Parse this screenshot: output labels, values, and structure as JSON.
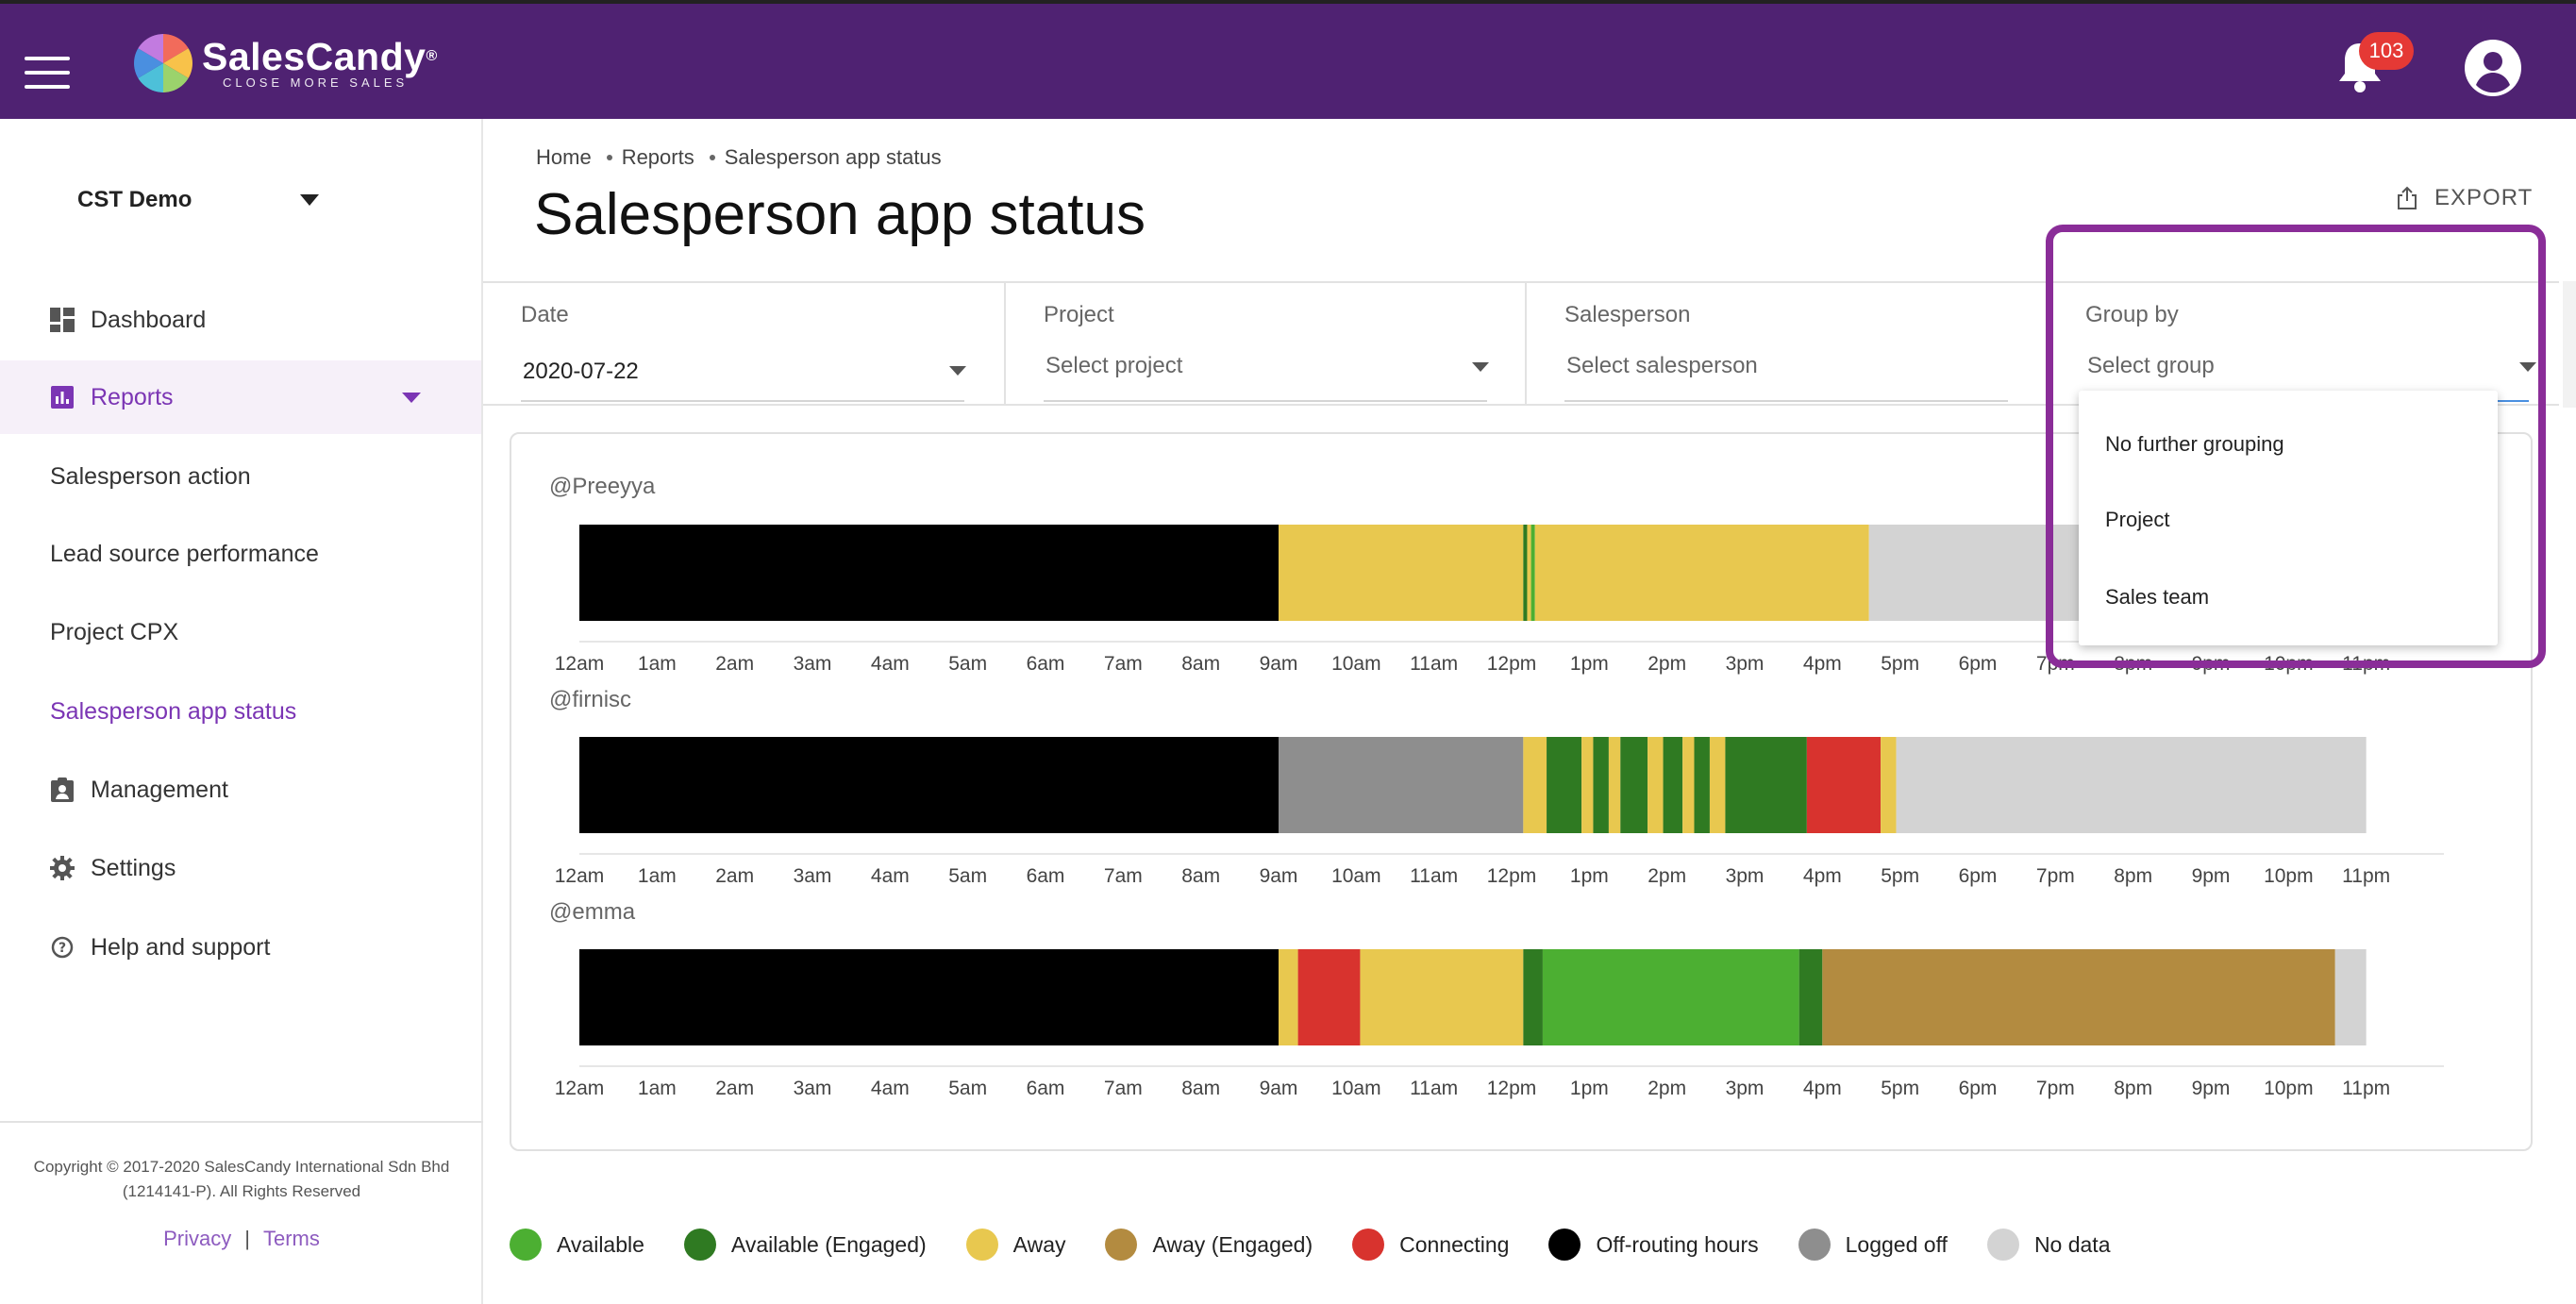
{
  "header": {
    "brand": "SalesCandy",
    "brand_mark": "®",
    "tagline": "CLOSE MORE SALES",
    "notification_count": "103",
    "colors": {
      "topbar": "#4f2272",
      "accent": "#7b35b4",
      "badge": "#e53935"
    }
  },
  "sidebar": {
    "org": "CST Demo",
    "items": [
      {
        "label": "Dashboard",
        "icon": "dashboard-icon"
      },
      {
        "label": "Reports",
        "icon": "bar-chart-icon"
      },
      {
        "label": "Salesperson action"
      },
      {
        "label": "Lead source performance"
      },
      {
        "label": "Project CPX"
      },
      {
        "label": "Salesperson app status"
      },
      {
        "label": "Management",
        "icon": "clipboard-icon"
      },
      {
        "label": "Settings",
        "icon": "gear-icon"
      },
      {
        "label": "Help and support",
        "icon": "help-icon"
      }
    ],
    "copyright_line1": "Copyright © 2017-2020 SalesCandy International Sdn Bhd",
    "copyright_line2": "(1214141-P). All Rights Reserved",
    "privacy": "Privacy",
    "terms": "Terms",
    "separator": "|"
  },
  "main": {
    "breadcrumb": [
      "Home",
      "Reports",
      "Salesperson app status"
    ],
    "title": "Salesperson app status",
    "export_label": "EXPORT",
    "filters": [
      {
        "label": "Date",
        "value": "2020-07-22"
      },
      {
        "label": "Project",
        "placeholder": "Select project"
      },
      {
        "label": "Salesperson",
        "placeholder": "Select salesperson"
      },
      {
        "label": "Group by",
        "placeholder": "Select group"
      }
    ],
    "group_options": [
      "No further grouping",
      "Project",
      "Sales team"
    ]
  },
  "chart_data": {
    "type": "timeline",
    "x_ticks": [
      "12am",
      "1am",
      "2am",
      "3am",
      "4am",
      "5am",
      "6am",
      "7am",
      "8am",
      "9am",
      "10am",
      "11am",
      "12pm",
      "1pm",
      "2pm",
      "3pm",
      "4pm",
      "5pm",
      "6pm",
      "7pm",
      "8pm",
      "9pm",
      "10pm",
      "11pm"
    ],
    "x_range_hours": [
      0,
      24
    ],
    "statuses": {
      "available": {
        "label": "Available",
        "color": "#4caf32"
      },
      "available_engaged": {
        "label": "Available (Engaged)",
        "color": "#2f7a22"
      },
      "away": {
        "label": "Away",
        "color": "#e8c84f"
      },
      "away_engaged": {
        "label": "Away (Engaged)",
        "color": "#b38b40"
      },
      "connecting": {
        "label": "Connecting",
        "color": "#d8332e"
      },
      "offrouting": {
        "label": "Off-routing hours",
        "color": "#000000"
      },
      "loggedoff": {
        "label": "Logged off",
        "color": "#8e8e8e"
      },
      "nodata": {
        "label": "No data",
        "color": "#d3d3d3"
      }
    },
    "series": [
      {
        "name": "@Preeyya",
        "segments": [
          [
            "offrouting",
            0,
            9
          ],
          [
            "away",
            9,
            12.15
          ],
          [
            "available_engaged",
            12.15,
            12.2
          ],
          [
            "away",
            12.2,
            12.25
          ],
          [
            "available",
            12.25,
            12.3
          ],
          [
            "away",
            12.3,
            16.6
          ],
          [
            "nodata",
            16.6,
            24
          ]
        ]
      },
      {
        "name": "@firnisc",
        "segments": [
          [
            "offrouting",
            0,
            9
          ],
          [
            "loggedoff",
            9,
            12.15
          ],
          [
            "away",
            12.15,
            12.45
          ],
          [
            "available_engaged",
            12.45,
            12.9
          ],
          [
            "away",
            12.9,
            13.05
          ],
          [
            "available_engaged",
            13.05,
            13.25
          ],
          [
            "away",
            13.25,
            13.4
          ],
          [
            "available_engaged",
            13.4,
            13.75
          ],
          [
            "away",
            13.75,
            13.95
          ],
          [
            "available_engaged",
            13.95,
            14.2
          ],
          [
            "away",
            14.2,
            14.35
          ],
          [
            "available_engaged",
            14.35,
            14.55
          ],
          [
            "away",
            14.55,
            14.75
          ],
          [
            "available_engaged",
            14.75,
            15.8
          ],
          [
            "connecting",
            15.8,
            16.75
          ],
          [
            "away",
            16.75,
            16.95
          ],
          [
            "nodata",
            16.95,
            23
          ]
        ]
      },
      {
        "name": "@emma",
        "segments": [
          [
            "offrouting",
            0,
            9
          ],
          [
            "away",
            9,
            9.25
          ],
          [
            "connecting",
            9.25,
            10.05
          ],
          [
            "away",
            10.05,
            12.15
          ],
          [
            "available_engaged",
            12.15,
            12.4
          ],
          [
            "available",
            12.4,
            15.7
          ],
          [
            "available_engaged",
            15.7,
            16.0
          ],
          [
            "away_engaged",
            16.0,
            22.6
          ],
          [
            "nodata",
            22.6,
            23
          ]
        ]
      }
    ]
  }
}
